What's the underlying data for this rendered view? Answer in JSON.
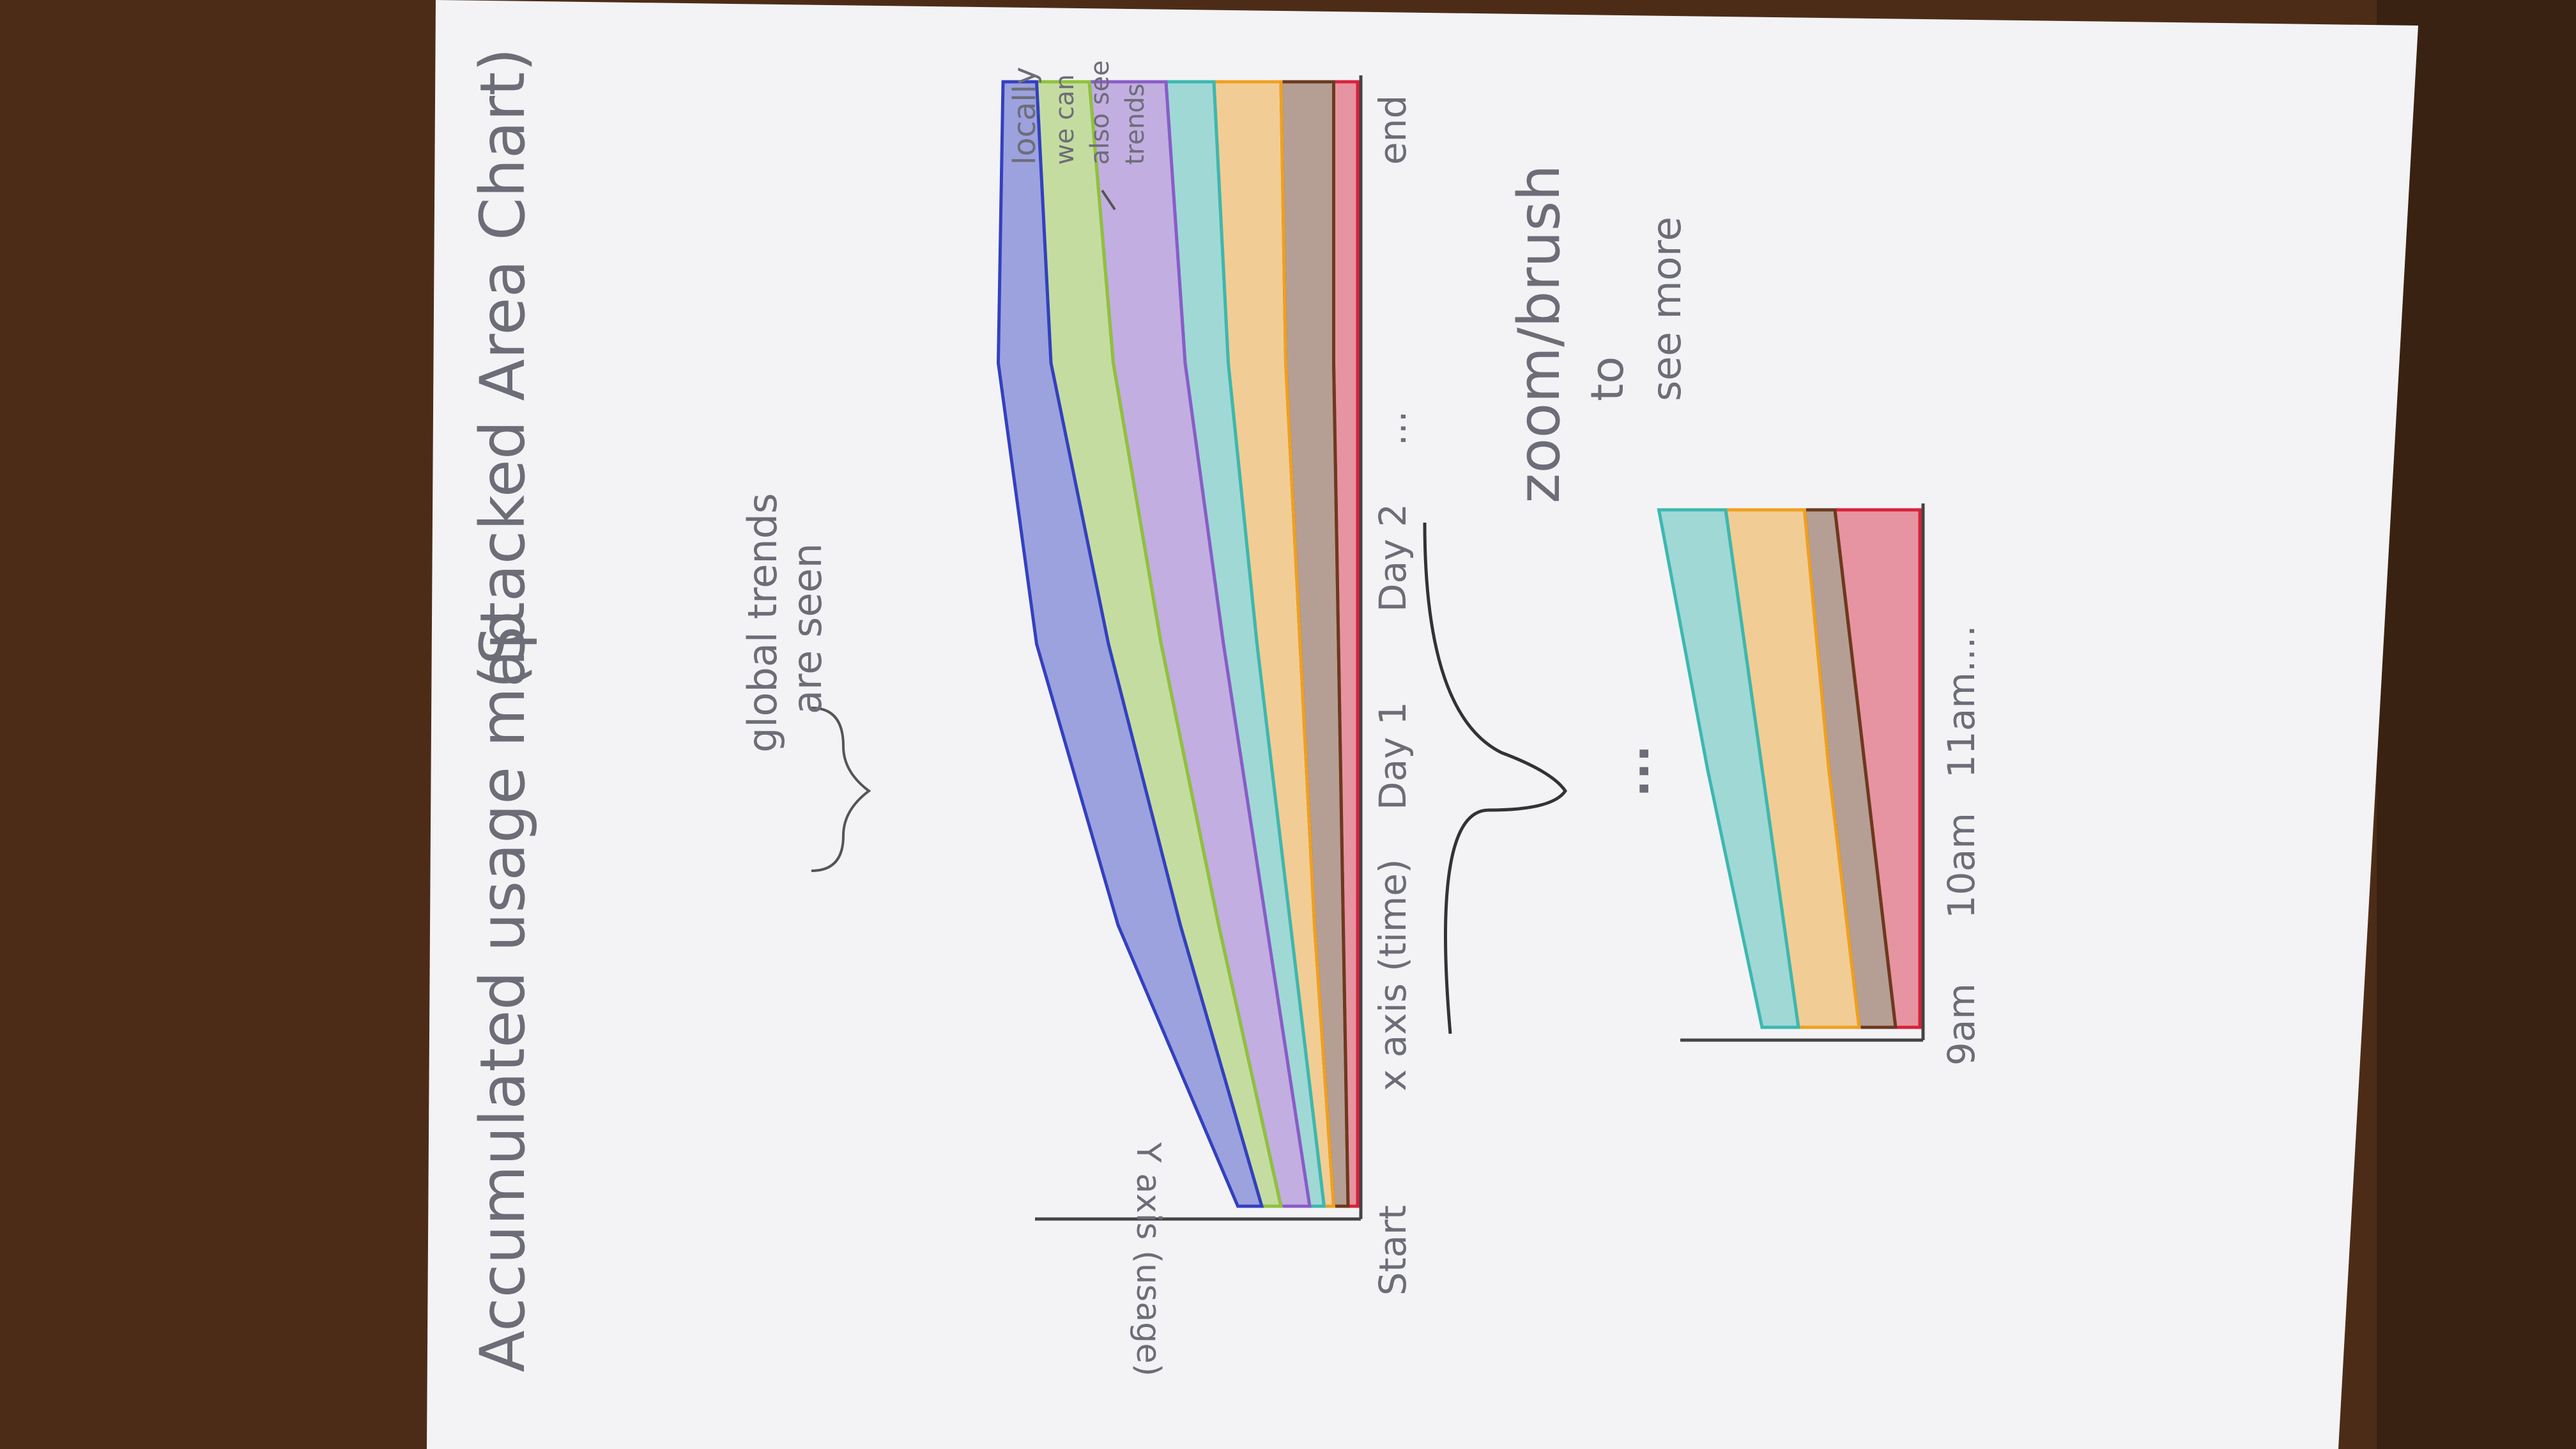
{
  "sketch": {
    "title": "Accumulated usage map",
    "subtitle": "(Stacked Area Chart)",
    "main_chart": {
      "y_axis_label": "Y axis (usage)",
      "x_axis_label": "x axis (time)",
      "ticks": [
        "Start",
        "Day 1",
        "Day 2",
        "...",
        "end"
      ],
      "annotation_global": [
        "global trends",
        "are seen"
      ],
      "annotation_local": [
        "locally",
        "we can",
        "also see",
        "trends"
      ]
    },
    "zoom_note": [
      "zoom/brush",
      "to",
      "see more"
    ],
    "zoom_ellipsis": "...",
    "detail_chart": {
      "ticks": [
        "9am",
        "10am",
        "11am...."
      ]
    }
  },
  "chart_data": {
    "type": "area",
    "stacked": true,
    "x": [
      "Start",
      "Day 1",
      "Day 2",
      "...",
      "end"
    ],
    "series": [
      {
        "color": "#d8213a",
        "values": [
          0.2,
          0.3,
          0.4,
          0.5,
          0.5
        ]
      },
      {
        "color": "#6b3a1e",
        "values": [
          0.3,
          0.6,
          0.8,
          1.0,
          1.1
        ]
      },
      {
        "color": "#f0a020",
        "values": [
          0.2,
          0.5,
          0.9,
          1.2,
          1.4
        ]
      },
      {
        "color": "#3cb8b0",
        "values": [
          0.3,
          0.5,
          0.7,
          0.9,
          1.0
        ]
      },
      {
        "color": "#8a5cc8",
        "values": [
          0.6,
          1.0,
          1.3,
          1.5,
          1.6
        ]
      },
      {
        "color": "#8fc23a",
        "values": [
          0.4,
          0.8,
          1.1,
          1.3,
          1.1
        ]
      },
      {
        "color": "#3340c0",
        "values": [
          0.5,
          1.3,
          1.5,
          1.1,
          0.7
        ]
      }
    ]
  },
  "detail_chart_data": {
    "type": "area",
    "stacked": true,
    "x": [
      "9am",
      "10am",
      "11am...."
    ],
    "series": [
      {
        "color": "#d8213a",
        "values": [
          0.4,
          0.9,
          1.4
        ]
      },
      {
        "color": "#6b3a1e",
        "values": [
          0.6,
          0.6,
          0.5
        ]
      },
      {
        "color": "#f0a020",
        "values": [
          1.0,
          1.1,
          1.3
        ]
      },
      {
        "color": "#3cb8b0",
        "values": [
          0.6,
          0.9,
          1.1
        ]
      }
    ]
  }
}
